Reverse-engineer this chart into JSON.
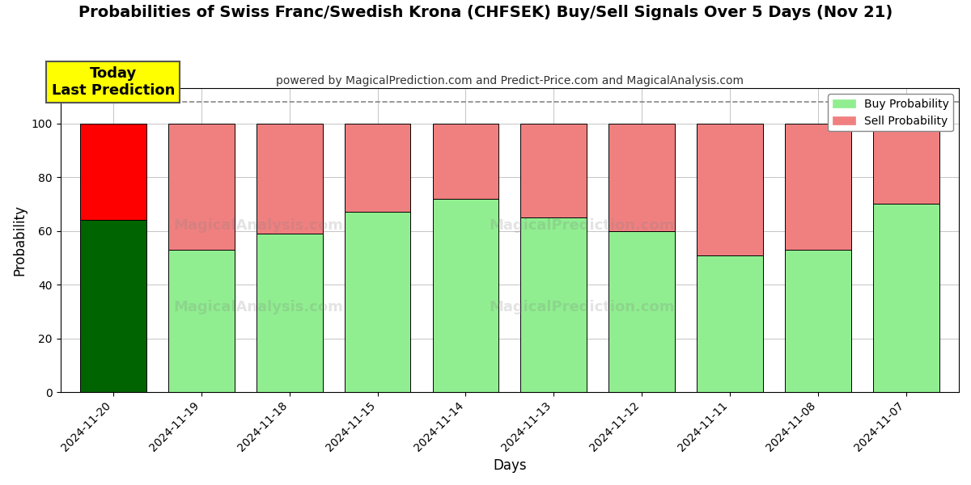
{
  "title": "Probabilities of Swiss Franc/Swedish Krona (CHFSEK) Buy/Sell Signals Over 5 Days (Nov 21)",
  "subtitle": "powered by MagicalPrediction.com and Predict-Price.com and MagicalAnalysis.com",
  "xlabel": "Days",
  "ylabel": "Probability",
  "categories": [
    "2024-11-20",
    "2024-11-19",
    "2024-11-18",
    "2024-11-15",
    "2024-11-14",
    "2024-11-13",
    "2024-11-12",
    "2024-11-11",
    "2024-11-08",
    "2024-11-07"
  ],
  "buy_values": [
    64,
    53,
    59,
    67,
    72,
    65,
    60,
    51,
    53,
    70
  ],
  "sell_values": [
    36,
    47,
    41,
    33,
    28,
    35,
    40,
    49,
    47,
    30
  ],
  "today_buy_color": "#006400",
  "today_sell_color": "#ff0000",
  "buy_color": "#90ee90",
  "sell_color": "#f08080",
  "bar_edge_color": "#000000",
  "today_annotation_text": "Today\nLast Prediction",
  "today_annotation_bg": "#ffff00",
  "ylim": [
    0,
    113
  ],
  "yticks": [
    0,
    20,
    40,
    60,
    80,
    100
  ],
  "dashed_line_y": 108,
  "background_color": "#ffffff",
  "grid_color": "#aaaaaa",
  "legend_buy_label": "Buy Probability",
  "legend_sell_label": "Sell Probability",
  "title_fontsize": 14,
  "subtitle_fontsize": 10,
  "bar_width": 0.75
}
